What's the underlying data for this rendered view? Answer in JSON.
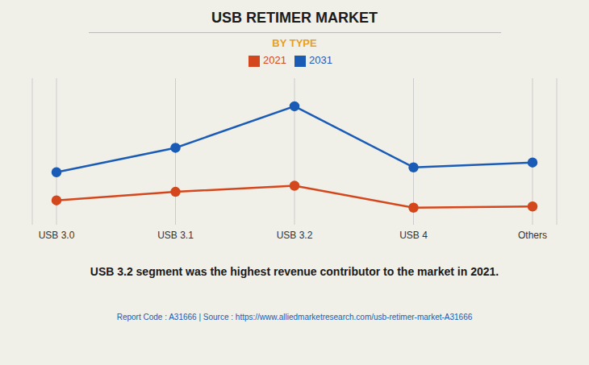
{
  "chart_data": {
    "type": "line",
    "title": "USB RETIMER MARKET",
    "subtitle": "BY TYPE",
    "categories": [
      "USB 3.0",
      "USB 3.1",
      "USB 3.2",
      "USB 4",
      "Others"
    ],
    "series": [
      {
        "name": "2021",
        "color": "#d4471c",
        "marker": "circle",
        "values": [
          1.5,
          2.2,
          2.7,
          0.9,
          1.0
        ]
      },
      {
        "name": "2031",
        "color": "#1a5cb5",
        "marker": "circle",
        "values": [
          3.8,
          5.8,
          9.2,
          4.2,
          4.6
        ]
      }
    ],
    "ylim": [
      -0.5,
      11.5
    ],
    "grid": true,
    "legend": "top",
    "tick_labels": "x",
    "annotation": "USB 3.2 segment was the highest revenue contributor to the market in 2021.",
    "footer": "Report Code : A31666  |  Source : https://www.alliedmarketresearch.com/usb-retimer-market-A31666"
  }
}
